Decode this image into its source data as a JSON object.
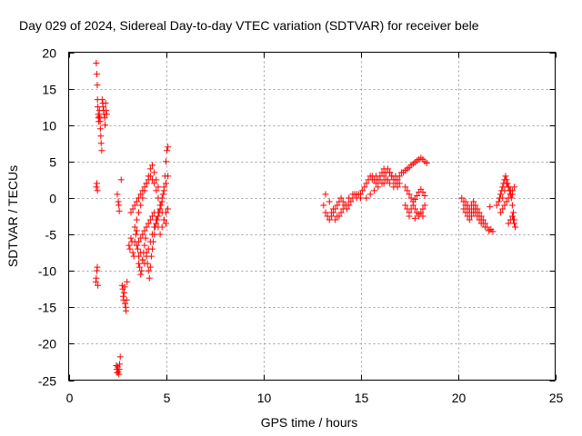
{
  "chart_data": {
    "type": "scatter",
    "title": "Day 029 of 2024, Sidereal Day-to-day VTEC variation (SDTVAR) for receiver bele",
    "xlabel": "GPS time / hours",
    "ylabel": "SDTVAR / TECUs",
    "xlim": [
      0,
      25
    ],
    "ylim": [
      -25,
      20
    ],
    "xticks": [
      0,
      5,
      10,
      15,
      20,
      25
    ],
    "yticks": [
      -25,
      -20,
      -15,
      -10,
      -5,
      0,
      5,
      10,
      15,
      20
    ],
    "xtick_labels": [
      "0",
      "5",
      "10",
      "15",
      "20",
      "25"
    ],
    "ytick_labels": [
      "-25",
      "-20",
      "-15",
      "-10",
      "-5",
      "0",
      "5",
      "10",
      "15",
      "20"
    ],
    "grid": true,
    "marker": "+",
    "marker_color": "#ff0000",
    "series": [
      {
        "name": "SDTVAR",
        "x": [
          1.42,
          1.45,
          1.47,
          1.48,
          1.5,
          1.52,
          1.53,
          1.55,
          1.57,
          1.58,
          1.6,
          1.62,
          1.63,
          1.65,
          1.67,
          1.7,
          1.72,
          1.75,
          1.77,
          1.8,
          1.82,
          1.85,
          1.87,
          1.9,
          1.92,
          1.95,
          1.4,
          1.42,
          1.45,
          1.47,
          1.5,
          1.42,
          1.45,
          1.48,
          2.45,
          2.48,
          2.5,
          2.52,
          2.55,
          2.58,
          2.6,
          2.62,
          2.65,
          2.5,
          2.55,
          2.58,
          2.6,
          2.7,
          2.75,
          2.78,
          2.8,
          2.82,
          2.85,
          2.88,
          2.9,
          2.93,
          2.95,
          2.98,
          3.0,
          3.1,
          3.15,
          3.2,
          3.25,
          3.3,
          3.35,
          3.4,
          3.45,
          3.5,
          3.55,
          3.6,
          3.65,
          3.7,
          3.75,
          3.8,
          3.85,
          3.9,
          3.95,
          4.0,
          4.05,
          4.1,
          4.15,
          4.2,
          4.25,
          4.3,
          4.35,
          4.4,
          4.45,
          4.5,
          4.55,
          4.6,
          4.65,
          4.7,
          4.75,
          4.8,
          4.85,
          4.9,
          4.95,
          5.0,
          5.05,
          5.1,
          3.2,
          3.3,
          3.4,
          3.5,
          3.6,
          3.7,
          3.8,
          3.9,
          4.0,
          4.1,
          4.2,
          4.3,
          4.4,
          4.5,
          4.6,
          4.7,
          4.8,
          4.9,
          5.0,
          3.4,
          3.5,
          3.6,
          3.7,
          3.8,
          3.9,
          4.0,
          4.1,
          4.2,
          4.3,
          4.4,
          4.5,
          4.6,
          3.5,
          3.6,
          3.7,
          3.8,
          3.9,
          4.0,
          4.1,
          4.2,
          4.3,
          4.4,
          4.5,
          4.6,
          4.7,
          4.8,
          4.9,
          5.0,
          5.1,
          3.6,
          3.7,
          3.8,
          3.9,
          4.0,
          4.1,
          4.2,
          4.3,
          4.4,
          4.5,
          4.6,
          4.7,
          4.8,
          4.9,
          5.0,
          5.1,
          13.1,
          13.2,
          13.3,
          13.4,
          13.5,
          13.6,
          13.7,
          13.8,
          13.9,
          14.0,
          14.1,
          14.2,
          14.3,
          14.4,
          14.5,
          14.6,
          14.7,
          14.8,
          14.9,
          15.0,
          13.2,
          13.4,
          13.6,
          13.8,
          14.0,
          14.2,
          14.4,
          14.6,
          14.8,
          13.5,
          13.7,
          13.9,
          14.1,
          14.3,
          15.0,
          15.1,
          15.2,
          15.3,
          15.4,
          15.5,
          15.6,
          15.7,
          15.8,
          15.9,
          16.0,
          16.1,
          16.2,
          16.3,
          16.4,
          16.5,
          16.6,
          16.7,
          16.8,
          16.9,
          17.0,
          17.1,
          15.3,
          15.5,
          15.7,
          15.9,
          16.1,
          16.3,
          16.5,
          16.7,
          16.9,
          15.6,
          15.8,
          16.0,
          16.2,
          16.4,
          16.6,
          16.8,
          17.0,
          16.2,
          16.5,
          16.8,
          17.2,
          17.3,
          17.4,
          17.5,
          17.6,
          17.7,
          17.8,
          17.9,
          18.0,
          18.1,
          18.2,
          18.3,
          18.4,
          17.3,
          17.4,
          17.5,
          17.6,
          17.7,
          17.8,
          17.9,
          18.0,
          18.1,
          18.2,
          18.3,
          17.3,
          17.4,
          17.5,
          17.6,
          17.7,
          17.8,
          17.9,
          18.0,
          18.1,
          18.2,
          18.3,
          17.5,
          17.8,
          18.0,
          18.2,
          20.2,
          20.3,
          20.4,
          20.5,
          20.6,
          20.7,
          20.8,
          20.9,
          21.0,
          21.1,
          21.2,
          21.3,
          21.4,
          21.5,
          21.6,
          20.3,
          20.4,
          20.5,
          20.6,
          20.7,
          20.8,
          20.9,
          21.0,
          21.1,
          21.2,
          21.3,
          21.4,
          20.4,
          20.5,
          20.6,
          20.7,
          20.8,
          20.9,
          21.0,
          21.1,
          21.2,
          21.6,
          21.7,
          21.8,
          21.65,
          22.0,
          22.1,
          22.15,
          22.2,
          22.25,
          22.3,
          22.35,
          22.4,
          22.45,
          22.5,
          22.55,
          22.6,
          22.65,
          22.7,
          22.75,
          22.8,
          22.85,
          22.9,
          22.95,
          22.2,
          22.3,
          22.4,
          22.5,
          22.6,
          22.7,
          22.8,
          22.9,
          22.3,
          22.4,
          22.5,
          22.6,
          22.7,
          22.8,
          22.6,
          22.7,
          22.8,
          22.85,
          22.9,
          22.95
        ],
        "y": [
          18.5,
          17.0,
          15.5,
          13.5,
          12.5,
          11.5,
          11.0,
          10.5,
          11.2,
          12.0,
          11.0,
          10.5,
          9.5,
          8.5,
          7.5,
          6.5,
          13.5,
          13.0,
          12.5,
          12.0,
          11.5,
          11.0,
          10.0,
          13.0,
          12.0,
          11.5,
          -11.5,
          -11.0,
          -10.0,
          -9.5,
          -12.0,
          1.5,
          2.0,
          1.0,
          -23.0,
          -23.5,
          -24.0,
          -23.2,
          -23.8,
          -24.2,
          -23.5,
          -22.8,
          -21.8,
          0.5,
          -0.5,
          -1.0,
          -1.8,
          2.5,
          -12.0,
          -12.5,
          -13.5,
          -14.0,
          -13.0,
          -12.2,
          -14.5,
          -15.0,
          -15.5,
          -14.0,
          -11.5,
          -6.5,
          -7.0,
          -5.5,
          -6.0,
          -7.5,
          -8.0,
          -6.0,
          -5.0,
          -4.5,
          -7.0,
          -9.0,
          -9.5,
          -10.5,
          -10.0,
          -8.5,
          -7.5,
          -6.5,
          -5.5,
          -7.5,
          -9.0,
          -10.0,
          -11.0,
          -9.5,
          -8.0,
          -7.0,
          -6.0,
          -5.0,
          -4.0,
          -3.5,
          -3.0,
          -2.5,
          -2.0,
          -1.5,
          -1.0,
          -0.5,
          0.5,
          1.5,
          3.0,
          5.0,
          6.5,
          7.0,
          -2.0,
          -1.5,
          -1.0,
          -0.5,
          0.0,
          0.5,
          1.0,
          1.5,
          2.0,
          2.5,
          3.0,
          2.5,
          2.0,
          1.0,
          0.0,
          -1.0,
          -2.0,
          -3.0,
          -3.5,
          -4.0,
          -3.0,
          -2.0,
          -1.0,
          0.0,
          1.0,
          2.0,
          3.0,
          4.0,
          4.5,
          3.5,
          2.5,
          1.5,
          -6.5,
          -6.0,
          -5.5,
          -5.0,
          -4.5,
          -4.0,
          -3.5,
          -3.0,
          -2.5,
          -2.0,
          -3.0,
          -4.0,
          -5.0,
          -4.0,
          -3.0,
          -2.0,
          -1.5,
          -8.0,
          -7.5,
          -8.5,
          -9.0,
          -8.0,
          -7.0,
          -6.0,
          -5.0,
          -4.0,
          -3.0,
          -2.0,
          -1.0,
          0.0,
          1.0,
          2.0,
          3.0,
          -1.0,
          -2.0,
          -2.5,
          -3.0,
          -2.5,
          -2.0,
          -1.5,
          -1.0,
          -0.5,
          0.0,
          -0.5,
          -1.0,
          -1.5,
          -1.0,
          -0.5,
          0.0,
          0.5,
          0.5,
          0.5,
          0.0,
          0.5,
          -0.5,
          -1.5,
          -2.5,
          -2.0,
          -1.0,
          0.0,
          0.5,
          0.0,
          -2.0,
          -3.0,
          -2.5,
          -1.5,
          -1.0,
          0.5,
          1.0,
          1.5,
          2.0,
          2.5,
          3.0,
          3.0,
          2.5,
          2.0,
          2.5,
          3.0,
          3.5,
          3.0,
          3.5,
          4.0,
          3.5,
          3.0,
          2.5,
          2.0,
          2.5,
          3.0,
          3.5,
          0.0,
          0.5,
          1.0,
          1.5,
          2.0,
          2.5,
          2.0,
          1.5,
          1.5,
          2.5,
          3.0,
          2.5,
          2.0,
          2.5,
          3.0,
          2.5,
          2.0,
          4.0,
          3.5,
          3.0,
          3.5,
          3.8,
          4.0,
          4.2,
          4.5,
          4.7,
          4.9,
          5.1,
          5.3,
          5.5,
          5.3,
          5.0,
          4.8,
          1.5,
          1.0,
          0.5,
          0.0,
          -0.5,
          -0.2,
          0.3,
          0.8,
          1.2,
          0.8,
          0.3,
          -1.0,
          -1.5,
          -2.0,
          -1.5,
          -1.0,
          -1.5,
          -2.0,
          -2.5,
          -2.0,
          -1.5,
          -1.0,
          -2.5,
          -2.8,
          -2.2,
          -2.5,
          0.0,
          -0.5,
          -1.0,
          -1.5,
          -2.0,
          -1.0,
          -0.5,
          -1.0,
          -1.5,
          -2.0,
          -2.5,
          -3.0,
          -3.5,
          -4.0,
          -4.5,
          -1.5,
          -2.0,
          -2.5,
          -3.0,
          -2.5,
          -2.0,
          -1.5,
          -2.0,
          -2.5,
          -3.0,
          -3.5,
          -4.0,
          -0.5,
          -1.0,
          -1.5,
          -2.0,
          -1.5,
          -2.0,
          -2.5,
          -3.0,
          -3.5,
          -4.5,
          -4.3,
          -4.6,
          -1.2,
          -1.0,
          -0.5,
          0.0,
          0.5,
          1.0,
          1.5,
          2.0,
          2.5,
          3.0,
          2.5,
          2.0,
          1.5,
          1.0,
          0.5,
          0.0,
          -1.0,
          -2.0,
          -3.0,
          -4.0,
          -2.0,
          -1.5,
          -1.0,
          -0.5,
          0.0,
          0.5,
          1.0,
          1.5,
          0.0,
          1.0,
          2.0,
          1.5,
          1.0,
          0.5,
          -3.5,
          -3.0,
          -2.5,
          -3.0,
          -3.5,
          -4.0
        ]
      }
    ]
  }
}
